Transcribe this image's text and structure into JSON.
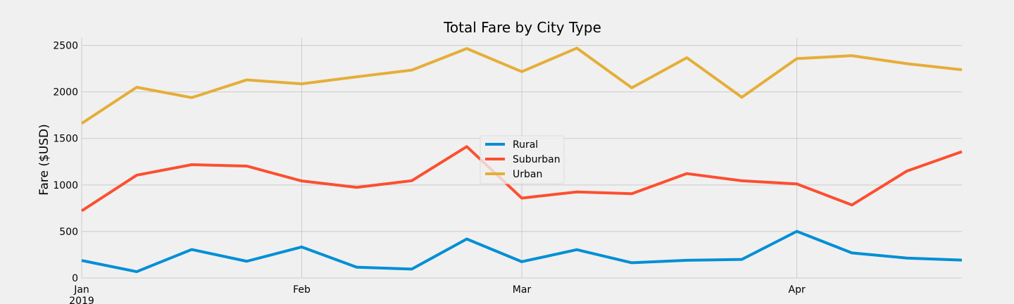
{
  "chart_data": {
    "type": "line",
    "title": "Total Fare by City Type",
    "xlabel": "",
    "ylabel": "Fare ($USD)",
    "x": [
      "2019-01-06",
      "2019-01-13",
      "2019-01-20",
      "2019-01-27",
      "2019-02-03",
      "2019-02-10",
      "2019-02-17",
      "2019-02-24",
      "2019-03-03",
      "2019-03-10",
      "2019-03-17",
      "2019-03-24",
      "2019-03-31",
      "2019-04-07",
      "2019-04-14",
      "2019-04-21",
      "2019-04-28"
    ],
    "xlim": [
      "2019-01-06",
      "2019-04-28"
    ],
    "xticks": [
      {
        "date": "2019-01-06",
        "label": "Jan",
        "sublabel": "2019"
      },
      {
        "date": "2019-02-03",
        "label": "Feb",
        "sublabel": ""
      },
      {
        "date": "2019-03-03",
        "label": "Mar",
        "sublabel": ""
      },
      {
        "date": "2019-04-07",
        "label": "Apr",
        "sublabel": ""
      }
    ],
    "ylim": [
      0,
      2580
    ],
    "yticks": [
      0,
      500,
      1000,
      1500,
      2000,
      2500
    ],
    "grid": true,
    "legend_position": "center",
    "series": [
      {
        "name": "Rural",
        "color": "#008fd5",
        "values": [
          187.92,
          67.65,
          306.0,
          179.69,
          333.08,
          115.8,
          95.82,
          419.06,
          175.14,
          303.94,
          163.39,
          189.76,
          199.42,
          501.24,
          269.79,
          214.14,
          191.85
        ]
      },
      {
        "name": "Suburban",
        "color": "#fc4f30",
        "values": [
          721.6,
          1105.13,
          1218.2,
          1203.28,
          1042.79,
          974.34,
          1045.5,
          1412.74,
          858.46,
          925.27,
          906.2,
          1122.2,
          1045.06,
          1010.73,
          784.82,
          1149.27,
          1357.75
        ]
      },
      {
        "name": "Urban",
        "color": "#e5ae38",
        "values": [
          1661.68,
          2050.43,
          1939.02,
          2129.51,
          2086.94,
          2162.64,
          2235.07,
          2466.29,
          2218.2,
          2470.93,
          2044.42,
          2368.37,
          1942.77,
          2358.36,
          2389.68,
          2303.8,
          2238.29
        ]
      }
    ]
  }
}
